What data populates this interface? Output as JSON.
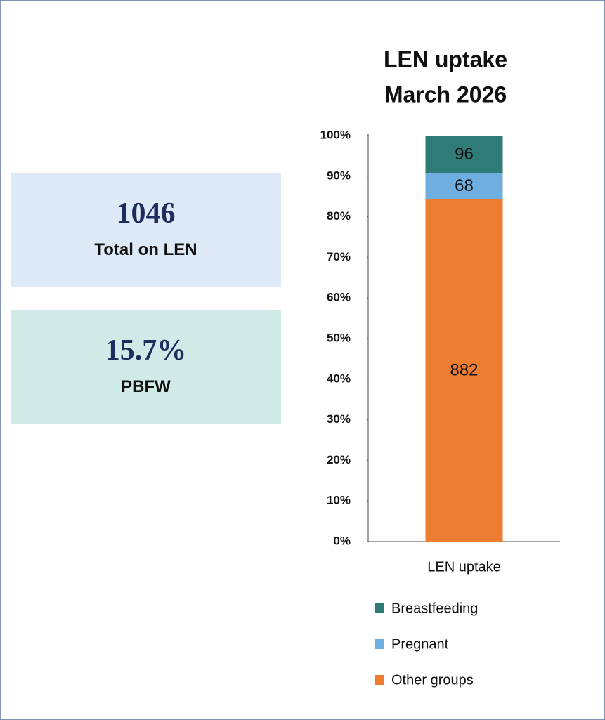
{
  "cards": [
    {
      "value": "1046",
      "label": "Total on LEN"
    },
    {
      "value": "15.7%",
      "label": "PBFW"
    }
  ],
  "chart_data": {
    "type": "bar",
    "stack": "percent",
    "title": "LEN uptake",
    "subtitle": "March 2026",
    "categories": [
      "LEN uptake"
    ],
    "series": [
      {
        "name": "Other groups",
        "color": "#ed7d31",
        "values": [
          882
        ]
      },
      {
        "name": "Pregnant",
        "color": "#6eaee0",
        "values": [
          68
        ]
      },
      {
        "name": "Breastfeeding",
        "color": "#2e7b78",
        "values": [
          96
        ]
      }
    ],
    "ylim": [
      0,
      100
    ],
    "yticks": [
      {
        "value": 0,
        "label": "0%"
      },
      {
        "value": 10,
        "label": "10%"
      },
      {
        "value": 20,
        "label": "20%"
      },
      {
        "value": 30,
        "label": "30%"
      },
      {
        "value": 40,
        "label": "40%"
      },
      {
        "value": 50,
        "label": "50%"
      },
      {
        "value": 60,
        "label": "60%"
      },
      {
        "value": 70,
        "label": "70%"
      },
      {
        "value": 80,
        "label": "80%"
      },
      {
        "value": 90,
        "label": "90%"
      },
      {
        "value": 100,
        "label": "100%"
      }
    ],
    "legend": "bottom",
    "legend_order": "reverse"
  }
}
